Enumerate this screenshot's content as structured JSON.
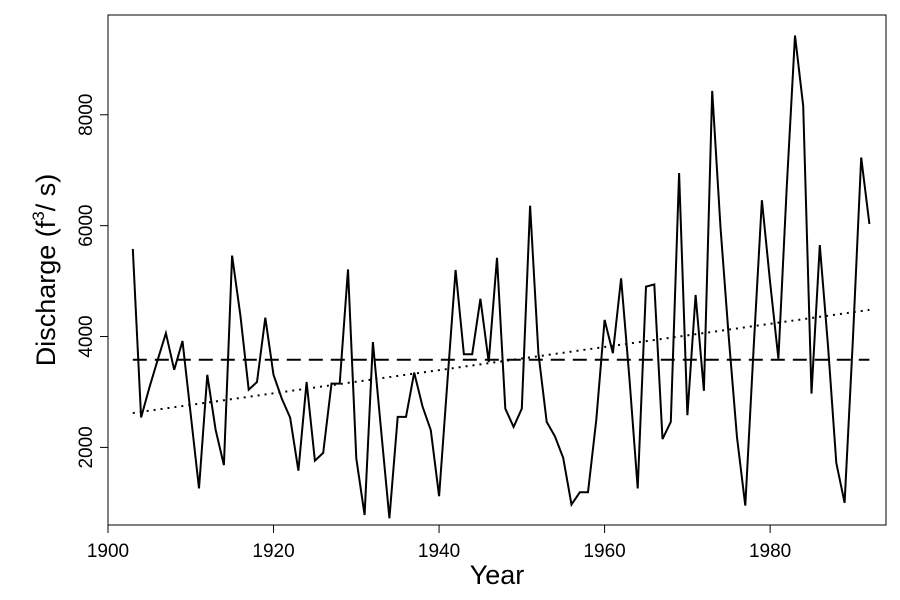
{
  "chart_data": {
    "type": "line",
    "xlabel": "Year",
    "ylabel": {
      "prefix": "Discharge (f",
      "superscript": "3",
      "suffix": "/ s)"
    },
    "xlim": [
      1900,
      1994
    ],
    "ylim": [
      600,
      9800
    ],
    "x_ticks": [
      1900,
      1920,
      1940,
      1960,
      1980
    ],
    "y_ticks": [
      2000,
      4000,
      6000,
      8000
    ],
    "grid": false,
    "legend": "none",
    "series": [
      {
        "style": "solid",
        "x": [
          1903,
          1904,
          1905,
          1906,
          1907,
          1908,
          1909,
          1910,
          1911,
          1912,
          1913,
          1914,
          1915,
          1916,
          1917,
          1918,
          1919,
          1920,
          1921,
          1922,
          1923,
          1924,
          1925,
          1926,
          1927,
          1928,
          1929,
          1930,
          1931,
          1932,
          1933,
          1934,
          1935,
          1936,
          1937,
          1938,
          1939,
          1940,
          1941,
          1942,
          1943,
          1944,
          1945,
          1946,
          1947,
          1948,
          1949,
          1950,
          1951,
          1952,
          1953,
          1954,
          1955,
          1956,
          1957,
          1958,
          1959,
          1960,
          1961,
          1962,
          1963,
          1964,
          1965,
          1966,
          1967,
          1968,
          1969,
          1970,
          1971,
          1972,
          1973,
          1974,
          1975,
          1976,
          1977,
          1978,
          1979,
          1980,
          1981,
          1982,
          1983,
          1984,
          1985,
          1986,
          1987,
          1988,
          1989,
          1990,
          1991,
          1992
        ],
        "values": [
          5580,
          2540,
          3080,
          3580,
          4060,
          3400,
          3920,
          2580,
          1260,
          3310,
          2320,
          1680,
          5460,
          4380,
          3040,
          3180,
          4340,
          3310,
          2880,
          2540,
          1580,
          3180,
          1760,
          1900,
          3150,
          3150,
          5210,
          1800,
          780,
          3900,
          2310,
          720,
          2550,
          2550,
          3350,
          2740,
          2310,
          1120,
          3160,
          5200,
          3680,
          3680,
          4680,
          3540,
          5420,
          2700,
          2370,
          2700,
          6360,
          3700,
          2460,
          2200,
          1810,
          970,
          1190,
          1190,
          2500,
          4300,
          3700,
          5050,
          3250,
          1260,
          4900,
          4940,
          2150,
          2460,
          6950,
          2580,
          4750,
          3020,
          8430,
          5970,
          4000,
          2180,
          950,
          3780,
          6460,
          4980,
          3600,
          6680,
          9430,
          8160,
          2970,
          5650,
          3810,
          1720,
          1000,
          3950,
          7230,
          6030
        ]
      },
      {
        "style": "dashed",
        "x": [
          1903,
          1992
        ],
        "values": [
          3580,
          3580
        ]
      },
      {
        "style": "dotted",
        "x": [
          1903,
          1992
        ],
        "values": [
          2620,
          4480
        ]
      }
    ]
  }
}
